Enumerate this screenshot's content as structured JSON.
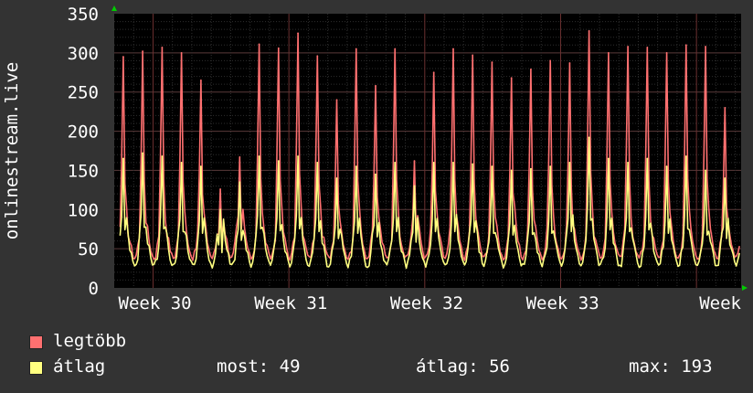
{
  "chart_data": {
    "type": "line",
    "ylabel": "onlinestream.live",
    "ylim": [
      0,
      350
    ],
    "yticks": [
      0,
      50,
      100,
      150,
      200,
      250,
      300,
      350
    ],
    "x_labels": [
      "Week 30",
      "Week 31",
      "Week 32",
      "Week 33",
      "Week"
    ],
    "grid": true,
    "days": 32,
    "series": [
      {
        "name": "legtöbb",
        "color": "#ff7070",
        "daily_peaks": [
          295,
          302,
          307,
          300,
          265,
          126,
          167,
          311,
          306,
          325,
          296,
          240,
          305,
          258,
          305,
          162,
          275,
          305,
          297,
          288,
          268,
          279,
          290,
          287,
          328,
          300,
          308,
          307,
          300,
          310,
          308,
          230
        ]
      },
      {
        "name": "átlag",
        "color": "#ffff80",
        "daily_peaks": [
          165,
          172,
          168,
          160,
          155,
          100,
          135,
          168,
          162,
          168,
          160,
          140,
          155,
          145,
          160,
          130,
          160,
          160,
          158,
          155,
          150,
          152,
          155,
          160,
          192,
          165,
          160,
          165,
          155,
          168,
          150,
          140
        ]
      }
    ]
  },
  "legend": {
    "max_label": "legtöbb",
    "avg_label": "átlag",
    "stats": {
      "now": "most: 49",
      "avg": "átlag: 56",
      "max": "max: 193"
    }
  }
}
